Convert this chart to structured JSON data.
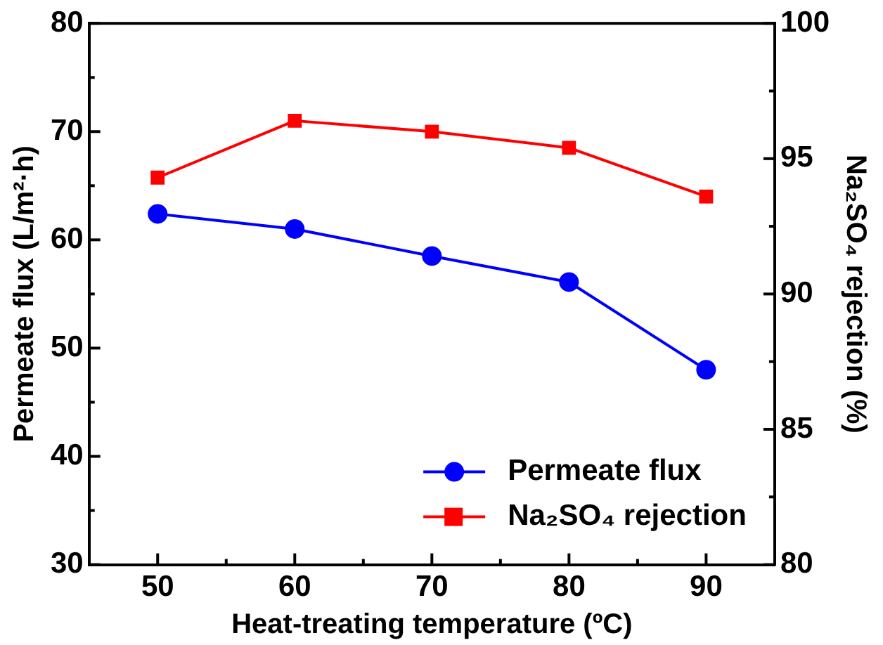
{
  "chart_data": {
    "type": "line",
    "xlabel": "Heat-treating temperature (ºC)",
    "ylabel": "Permeate flux (L/m²·h)",
    "y2label": "Na₂SO₄ rejection (%)",
    "x": [
      50,
      60,
      70,
      80,
      90
    ],
    "series": [
      {
        "name": "Permeate flux",
        "color": "#0000ff",
        "marker": "circle",
        "values": [
          62.4,
          61.0,
          58.5,
          56.1,
          48.0
        ]
      },
      {
        "name": "Na₂SO₄ rejection",
        "color": "#ff0000",
        "marker": "square",
        "axis": "y2",
        "values": [
          94.3,
          96.4,
          96.0,
          95.4,
          93.6
        ]
      }
    ],
    "xlim": [
      45,
      95
    ],
    "xticks": [
      50,
      {
        "value": 55,
        "label": null
      },
      60,
      {
        "value": 65,
        "label": null
      },
      70,
      {
        "value": 75,
        "label": null
      },
      80,
      {
        "value": 85,
        "label": null
      },
      90
    ],
    "ylim": [
      30,
      80
    ],
    "yticks": [
      30,
      {
        "value": 35,
        "label": null
      },
      40,
      {
        "value": 45,
        "label": null
      },
      50,
      {
        "value": 55,
        "label": null
      },
      60,
      {
        "value": 65,
        "label": null
      },
      70,
      {
        "value": 75,
        "label": null
      },
      80
    ],
    "y2lim": [
      80,
      100
    ],
    "y2ticks": [
      80,
      {
        "value": 82.5,
        "label": null
      },
      85,
      {
        "value": 87.5,
        "label": null
      },
      90,
      {
        "value": 92.5,
        "label": null
      },
      95,
      {
        "value": 97.5,
        "label": null
      },
      100
    ],
    "legend": "bottom right",
    "grid": false,
    "line_style": "solid"
  }
}
